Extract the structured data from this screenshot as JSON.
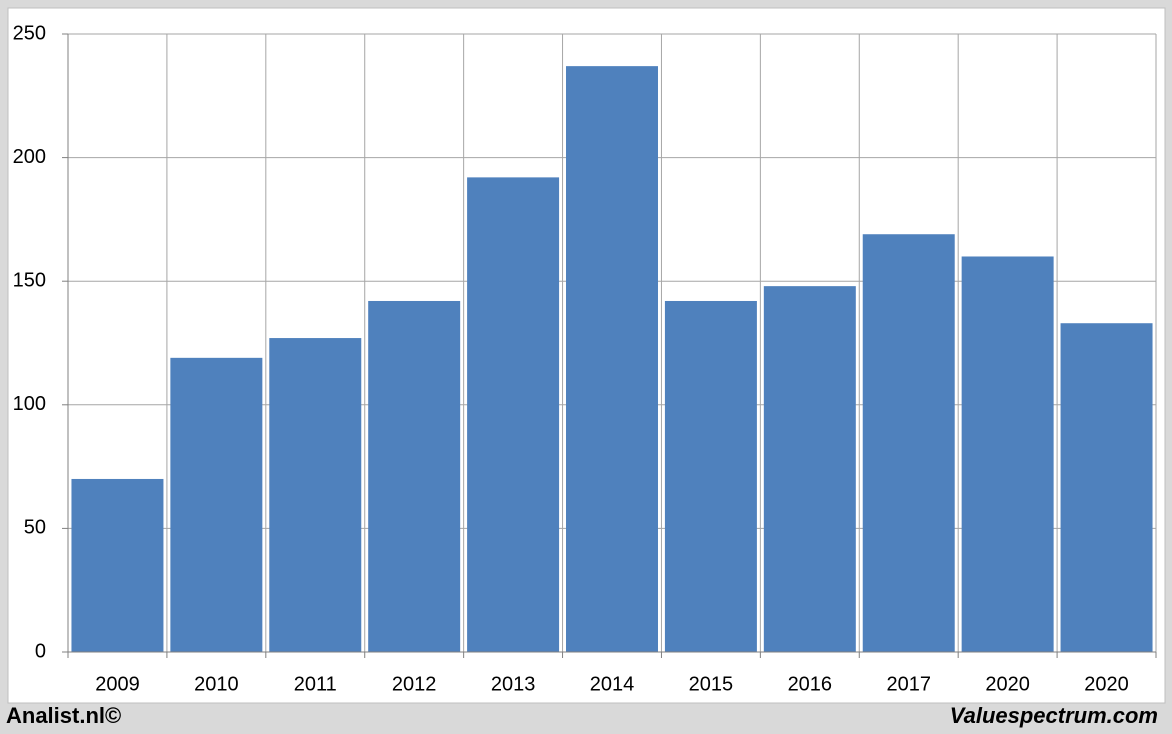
{
  "chart_data": {
    "type": "bar",
    "categories": [
      "2009",
      "2010",
      "2011",
      "2012",
      "2013",
      "2014",
      "2015",
      "2016",
      "2017",
      "2020",
      "2020"
    ],
    "values": [
      70,
      119,
      127,
      142,
      192,
      237,
      142,
      148,
      169,
      160,
      133
    ],
    "color": "#4f81bd",
    "ylim": [
      0,
      250
    ],
    "yticks": [
      0,
      50,
      100,
      150,
      200,
      250
    ],
    "grid": true,
    "footer_left": "Analist.nl©",
    "footer_right": "Valuespectrum.com"
  }
}
